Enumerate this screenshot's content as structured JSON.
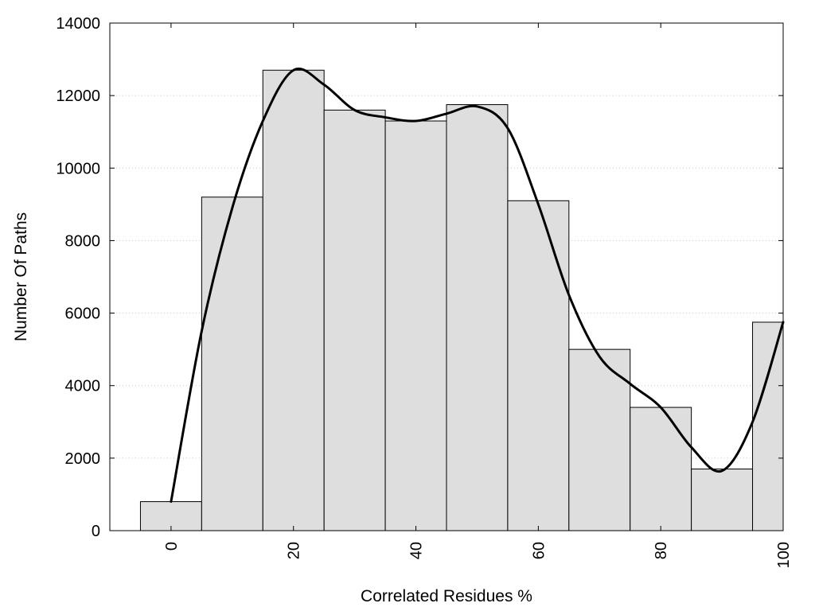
{
  "chart_data": {
    "type": "bar",
    "title": "",
    "xlabel": "Correlated Residues %",
    "ylabel": "Number Of Paths",
    "xlim": [
      -10,
      100
    ],
    "ylim": [
      0,
      14000
    ],
    "xticks": [
      "0",
      "20",
      "40",
      "60",
      "80",
      "100"
    ],
    "yticks": [
      "0",
      "2000",
      "4000",
      "6000",
      "8000",
      "10000",
      "12000",
      "14000"
    ],
    "grid": "horizontal dotted",
    "bin_width": 10,
    "categories": [
      0,
      10,
      20,
      30,
      40,
      50,
      60,
      70,
      80,
      90,
      100
    ],
    "values": [
      800,
      9200,
      12700,
      11600,
      11300,
      11750,
      9100,
      5000,
      3400,
      1700,
      5750
    ],
    "smooth_curve": {
      "x": [
        0,
        5,
        10,
        15,
        20,
        25,
        30,
        35,
        40,
        45,
        50,
        55,
        60,
        65,
        70,
        75,
        80,
        85,
        90,
        95,
        100
      ],
      "y": [
        800,
        5500,
        8900,
        11300,
        12700,
        12300,
        11600,
        11400,
        11300,
        11500,
        11700,
        11100,
        9000,
        6500,
        4800,
        4050,
        3400,
        2300,
        1650,
        3000,
        5750
      ]
    }
  }
}
